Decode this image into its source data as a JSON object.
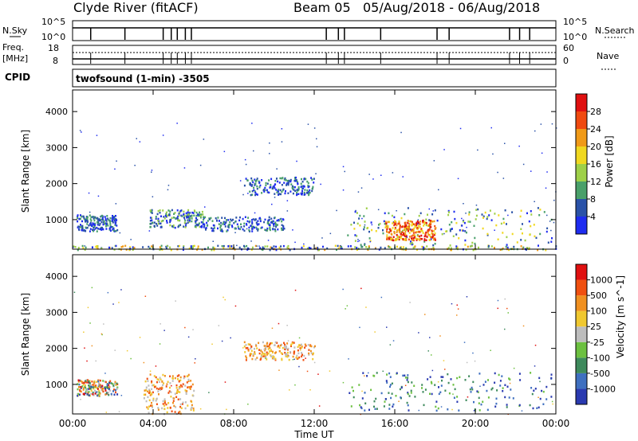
{
  "header": {
    "station": "Clyde River (fitACF)",
    "beam": "Beam 05",
    "date_range": "05/Aug/2018 - 06/Aug/2018"
  },
  "status_panels": {
    "nsky_label": "N.Sky",
    "nsky_ticks": [
      "10^5",
      "10^0"
    ],
    "nsearch_label": "N.Search",
    "nsearch_ticks": [
      "10^5",
      "10^0"
    ],
    "freq_label": "Freq.",
    "freq_unit": "[MHz]",
    "freq_ticks": [
      "18",
      "8"
    ],
    "nave_label": "Nave",
    "nave_ticks": [
      "60",
      "0"
    ],
    "cpid_label": "CPID",
    "cpid_value": "twofsound (1-min) -3505"
  },
  "chart_data": [
    {
      "type": "heatmap",
      "name": "power",
      "ylabel": "Slant Range [km]",
      "yticks": [
        1000,
        2000,
        3000,
        4000
      ],
      "ylim": [
        180,
        4600
      ],
      "xlim_hours": [
        0,
        24
      ],
      "colorbar": {
        "label": "Power [dB]",
        "ticks": [
          "4",
          "8",
          "12",
          "16",
          "20",
          "24",
          "28"
        ],
        "range": [
          0,
          32
        ],
        "colors": [
          "#1e2cf0",
          "#2a52a8",
          "#4aa06a",
          "#9ed048",
          "#f0d820",
          "#f09a18",
          "#f04a10",
          "#e01010"
        ]
      },
      "echo_regions": [
        {
          "t": [
            0.2,
            2.2
          ],
          "r": [
            700,
            1150
          ],
          "level": "weak"
        },
        {
          "t": [
            3.8,
            6.5
          ],
          "r": [
            800,
            1300
          ],
          "level": "medium"
        },
        {
          "t": [
            6.5,
            10.5
          ],
          "r": [
            700,
            1100
          ],
          "level": "weak"
        },
        {
          "t": [
            8.5,
            12.0
          ],
          "r": [
            1700,
            2200
          ],
          "level": "weak"
        },
        {
          "t": [
            13.6,
            23.8
          ],
          "r": [
            300,
            1350
          ],
          "level": "strong"
        },
        {
          "t": [
            15.5,
            18.0
          ],
          "r": [
            450,
            1000
          ],
          "level": "peak"
        },
        {
          "t": [
            0.0,
            24.0
          ],
          "r": [
            180,
            300
          ],
          "level": "ground"
        }
      ]
    },
    {
      "type": "heatmap",
      "name": "velocity",
      "ylabel": "Slant Range [km]",
      "yticks": [
        1000,
        2000,
        3000,
        4000
      ],
      "ylim": [
        180,
        4600
      ],
      "xlim_hours": [
        0,
        24
      ],
      "xticks": [
        "00:00",
        "04:00",
        "08:00",
        "12:00",
        "16:00",
        "20:00",
        "00:00"
      ],
      "xlabel": "Time UT",
      "colorbar": {
        "label": "Velocity [m s^-1]",
        "ticks": [
          "1000",
          "500",
          "100",
          "25",
          "-25",
          "-100",
          "-500",
          "-1000"
        ],
        "colors": [
          "#2a3ab0",
          "#3f70c0",
          "#3e8a5c",
          "#6cc040",
          "#bdbdbd",
          "#f0c830",
          "#f09020",
          "#f05010",
          "#e01010"
        ]
      },
      "echo_regions": [
        {
          "t": [
            0.2,
            2.2
          ],
          "r": [
            700,
            1150
          ],
          "sign": "mixed"
        },
        {
          "t": [
            3.5,
            6.0
          ],
          "r": [
            200,
            1300
          ],
          "sign": "away"
        },
        {
          "t": [
            8.5,
            12.0
          ],
          "r": [
            1700,
            2200
          ],
          "sign": "away"
        },
        {
          "t": [
            13.6,
            23.8
          ],
          "r": [
            300,
            1350
          ],
          "sign": "toward"
        }
      ]
    }
  ]
}
